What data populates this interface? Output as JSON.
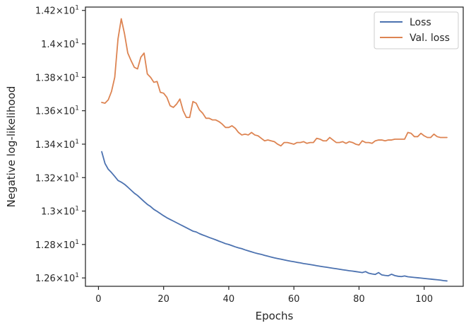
{
  "chart_data": {
    "type": "line",
    "title": "",
    "xlabel": "Epochs",
    "ylabel": "Negative log-likelihood",
    "xlim": [
      -4,
      112
    ],
    "ylim": [
      12.55,
      14.22
    ],
    "x_ticks": [
      0,
      20,
      40,
      60,
      80,
      100
    ],
    "x_tick_labels": [
      "0",
      "20",
      "40",
      "60",
      "80",
      "100"
    ],
    "y_ticks": [
      12.6,
      12.8,
      13.0,
      13.2,
      13.4,
      13.6,
      13.8,
      14.0,
      14.2
    ],
    "y_tick_labels": [
      {
        "mantissa": "1.26",
        "base": "10",
        "exp": "1"
      },
      {
        "mantissa": "1.28",
        "base": "10",
        "exp": "1"
      },
      {
        "mantissa": "1.3",
        "base": "10",
        "exp": "1"
      },
      {
        "mantissa": "1.32",
        "base": "10",
        "exp": "1"
      },
      {
        "mantissa": "1.34",
        "base": "10",
        "exp": "1"
      },
      {
        "mantissa": "1.36",
        "base": "10",
        "exp": "1"
      },
      {
        "mantissa": "1.38",
        "base": "10",
        "exp": "1"
      },
      {
        "mantissa": "1.4",
        "base": "10",
        "exp": "1"
      },
      {
        "mantissa": "1.42",
        "base": "10",
        "exp": "1"
      }
    ],
    "grid": false,
    "legend_position": "top-right",
    "series": [
      {
        "name": "Loss",
        "color": "#4c72b0",
        "x": [
          1,
          2,
          3,
          4,
          5,
          6,
          7,
          8,
          9,
          10,
          11,
          12,
          13,
          14,
          15,
          16,
          17,
          18,
          19,
          20,
          21,
          22,
          23,
          24,
          25,
          26,
          27,
          28,
          29,
          30,
          31,
          32,
          33,
          34,
          35,
          36,
          37,
          38,
          39,
          40,
          41,
          42,
          43,
          44,
          45,
          46,
          47,
          48,
          49,
          50,
          51,
          52,
          53,
          54,
          55,
          56,
          57,
          58,
          59,
          60,
          61,
          62,
          63,
          64,
          65,
          66,
          67,
          68,
          69,
          70,
          71,
          72,
          73,
          74,
          75,
          76,
          77,
          78,
          79,
          80,
          81,
          82,
          83,
          84,
          85,
          86,
          87,
          88,
          89,
          90,
          91,
          92,
          93,
          94,
          95,
          96,
          97,
          98,
          99,
          100,
          101,
          102,
          103,
          104,
          105,
          106,
          107
        ],
        "y": [
          13.355,
          13.285,
          13.25,
          13.23,
          13.207,
          13.183,
          13.173,
          13.16,
          13.143,
          13.125,
          13.107,
          13.093,
          13.075,
          13.057,
          13.04,
          13.027,
          13.01,
          12.998,
          12.985,
          12.972,
          12.96,
          12.95,
          12.94,
          12.93,
          12.92,
          12.91,
          12.9,
          12.89,
          12.88,
          12.875,
          12.865,
          12.857,
          12.85,
          12.842,
          12.835,
          12.828,
          12.82,
          12.813,
          12.805,
          12.8,
          12.793,
          12.786,
          12.78,
          12.775,
          12.768,
          12.762,
          12.756,
          12.75,
          12.745,
          12.741,
          12.735,
          12.73,
          12.725,
          12.72,
          12.716,
          12.712,
          12.708,
          12.704,
          12.7,
          12.697,
          12.693,
          12.69,
          12.686,
          12.683,
          12.68,
          12.677,
          12.673,
          12.67,
          12.667,
          12.664,
          12.661,
          12.658,
          12.655,
          12.652,
          12.649,
          12.646,
          12.643,
          12.641,
          12.638,
          12.635,
          12.632,
          12.638,
          12.628,
          12.624,
          12.621,
          12.632,
          12.618,
          12.615,
          12.613,
          12.622,
          12.614,
          12.61,
          12.608,
          12.612,
          12.607,
          12.605,
          12.603,
          12.601,
          12.599,
          12.597,
          12.595,
          12.593,
          12.591,
          12.589,
          12.587,
          12.584,
          12.582
        ]
      },
      {
        "name": "Val. loss",
        "color": "#dd8452",
        "x": [
          1,
          2,
          3,
          4,
          5,
          6,
          7,
          8,
          9,
          10,
          11,
          12,
          13,
          14,
          15,
          16,
          17,
          18,
          19,
          20,
          21,
          22,
          23,
          24,
          25,
          26,
          27,
          28,
          29,
          30,
          31,
          32,
          33,
          34,
          35,
          36,
          37,
          38,
          39,
          40,
          41,
          42,
          43,
          44,
          45,
          46,
          47,
          48,
          49,
          50,
          51,
          52,
          53,
          54,
          55,
          56,
          57,
          58,
          59,
          60,
          61,
          62,
          63,
          64,
          65,
          66,
          67,
          68,
          69,
          70,
          71,
          72,
          73,
          74,
          75,
          76,
          77,
          78,
          79,
          80,
          81,
          82,
          83,
          84,
          85,
          86,
          87,
          88,
          89,
          90,
          91,
          92,
          93,
          94,
          95,
          96,
          97,
          98,
          99,
          100,
          101,
          102,
          103,
          104,
          105,
          106,
          107
        ],
        "y": [
          13.65,
          13.645,
          13.665,
          13.715,
          13.8,
          14.03,
          14.15,
          14.06,
          13.945,
          13.9,
          13.86,
          13.85,
          13.92,
          13.945,
          13.82,
          13.8,
          13.77,
          13.775,
          13.71,
          13.705,
          13.68,
          13.63,
          13.62,
          13.64,
          13.67,
          13.6,
          13.56,
          13.56,
          13.655,
          13.645,
          13.605,
          13.585,
          13.555,
          13.555,
          13.545,
          13.545,
          13.535,
          13.52,
          13.5,
          13.5,
          13.51,
          13.495,
          13.47,
          13.455,
          13.46,
          13.455,
          13.47,
          13.455,
          13.45,
          13.435,
          13.42,
          13.425,
          13.42,
          13.415,
          13.4,
          13.39,
          13.41,
          13.41,
          13.405,
          13.4,
          13.41,
          13.41,
          13.415,
          13.405,
          13.41,
          13.41,
          13.435,
          13.43,
          13.42,
          13.42,
          13.44,
          13.425,
          13.41,
          13.41,
          13.415,
          13.405,
          13.415,
          13.41,
          13.4,
          13.395,
          13.42,
          13.41,
          13.41,
          13.405,
          13.42,
          13.425,
          13.425,
          13.42,
          13.425,
          13.425,
          13.43,
          13.43,
          13.43,
          13.43,
          13.47,
          13.465,
          13.445,
          13.445,
          13.465,
          13.45,
          13.44,
          13.44,
          13.46,
          13.445,
          13.44,
          13.44,
          13.44
        ]
      }
    ]
  }
}
